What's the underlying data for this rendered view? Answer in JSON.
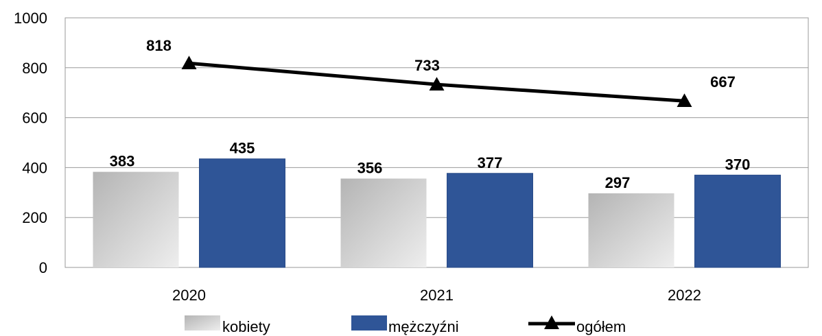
{
  "chart_data": {
    "type": "bar",
    "title": "",
    "xlabel": "",
    "ylabel": "",
    "categories": [
      "2020",
      "2021",
      "2022"
    ],
    "ylim": [
      0,
      1000
    ],
    "yticks": [
      "0",
      "200",
      "400",
      "600",
      "800",
      "1000"
    ],
    "grid": true,
    "legend_position": "bottom",
    "series": [
      {
        "name": "kobiety",
        "type": "bar",
        "color": "#d3d3d3",
        "values": [
          383,
          356,
          297
        ],
        "labels": [
          "383",
          "356",
          "297"
        ]
      },
      {
        "name": "mężczyźni",
        "type": "bar",
        "color": "#2f5597",
        "values": [
          435,
          377,
          370
        ],
        "labels": [
          "435",
          "377",
          "370"
        ]
      },
      {
        "name": "ogółem",
        "type": "line",
        "color": "#000000",
        "marker": "triangle",
        "values": [
          818,
          733,
          667
        ],
        "labels": [
          "818",
          "733",
          "667"
        ]
      }
    ]
  }
}
